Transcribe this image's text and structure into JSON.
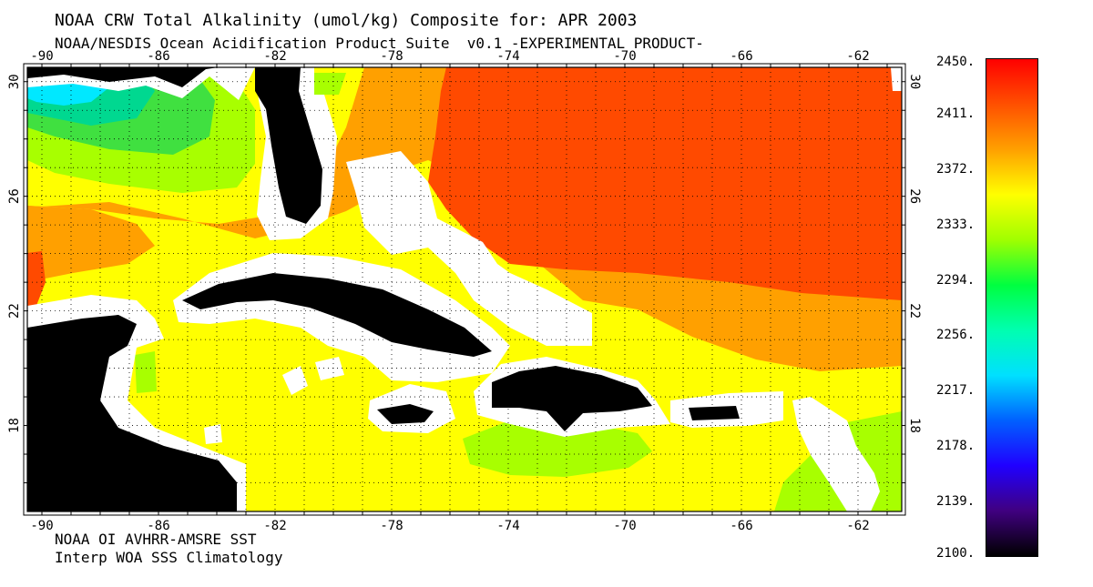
{
  "header": {
    "title": "NOAA CRW Total Alkalinity (umol/kg) Composite for: APR 2003",
    "subtitle": "NOAA/NESDIS Ocean Acidification Product Suite  v0.1 -EXPERIMENTAL PRODUCT-"
  },
  "footer": {
    "credit_sst": "NOAA OI AVHRR-AMSRE SST",
    "credit_sss": "Interp WOA SSS Climatology"
  },
  "map": {
    "lon_ticks": [
      "-90",
      "-86",
      "-82",
      "-78",
      "-74",
      "-70",
      "-66",
      "-62"
    ],
    "lat_ticks": [
      "30",
      "26",
      "22",
      "18"
    ],
    "lon_range": [
      -90.5,
      -60.5
    ],
    "lat_range": [
      15,
      30.5
    ],
    "colors": {
      "land": "#000000",
      "coast_mask": "#ffffff",
      "ta_2411": "#ff4a00",
      "ta_2390": "#ffa000",
      "ta_2372": "#ffd800",
      "ta_2360": "#ffff00",
      "ta_2345": "#a8ff00",
      "ta_2320": "#40e040",
      "ta_2295": "#00d890",
      "ta_2260": "#00e8ff"
    }
  },
  "colorbar": {
    "labels": [
      "2450.",
      "2411.",
      "2372.",
      "2333.",
      "2294.",
      "2256.",
      "2217.",
      "2178.",
      "2139.",
      "2100."
    ],
    "stops": [
      "#ff0000",
      "#ff5000",
      "#ffa000",
      "#ffff00",
      "#a0ff00",
      "#00ff40",
      "#00ffb0",
      "#00e0ff",
      "#0060ff",
      "#2000ff",
      "#400080",
      "#000000"
    ]
  }
}
